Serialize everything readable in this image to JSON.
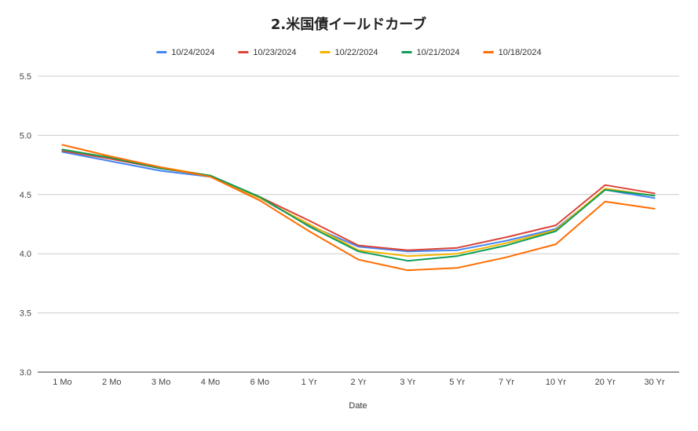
{
  "chart_data": {
    "type": "line",
    "title": "2.米国債イールドカーブ",
    "xlabel": "Date",
    "ylabel": "",
    "ylim": [
      3.0,
      5.5
    ],
    "yticks": [
      3.0,
      3.5,
      4.0,
      4.5,
      5.0,
      5.5
    ],
    "grid": true,
    "legend_position": "top",
    "categories": [
      "1 Mo",
      "2 Mo",
      "3 Mo",
      "4 Mo",
      "6 Mo",
      "1 Yr",
      "2 Yr",
      "3 Yr",
      "5 Yr",
      "7 Yr",
      "10 Yr",
      "20 Yr",
      "30 Yr"
    ],
    "series": [
      {
        "name": "10/24/2024",
        "color": "#4285f4",
        "values": [
          4.86,
          4.78,
          4.7,
          4.65,
          4.47,
          4.24,
          4.06,
          4.02,
          4.03,
          4.11,
          4.21,
          4.54,
          4.47
        ]
      },
      {
        "name": "10/23/2024",
        "color": "#db4437",
        "values": [
          4.87,
          4.8,
          4.72,
          4.66,
          4.48,
          4.28,
          4.07,
          4.03,
          4.05,
          4.14,
          4.24,
          4.58,
          4.51
        ]
      },
      {
        "name": "10/22/2024",
        "color": "#f4b400",
        "values": [
          4.88,
          4.81,
          4.73,
          4.66,
          4.47,
          4.25,
          4.03,
          3.98,
          4.0,
          4.09,
          4.2,
          4.55,
          4.49
        ]
      },
      {
        "name": "10/21/2024",
        "color": "#0f9d58",
        "values": [
          4.88,
          4.81,
          4.72,
          4.66,
          4.48,
          4.23,
          4.02,
          3.94,
          3.98,
          4.07,
          4.19,
          4.54,
          4.49
        ]
      },
      {
        "name": "10/18/2024",
        "color": "#ff6d01",
        "values": [
          4.92,
          4.82,
          4.73,
          4.65,
          4.45,
          4.19,
          3.95,
          3.86,
          3.88,
          3.97,
          4.08,
          4.44,
          4.38
        ]
      }
    ]
  }
}
